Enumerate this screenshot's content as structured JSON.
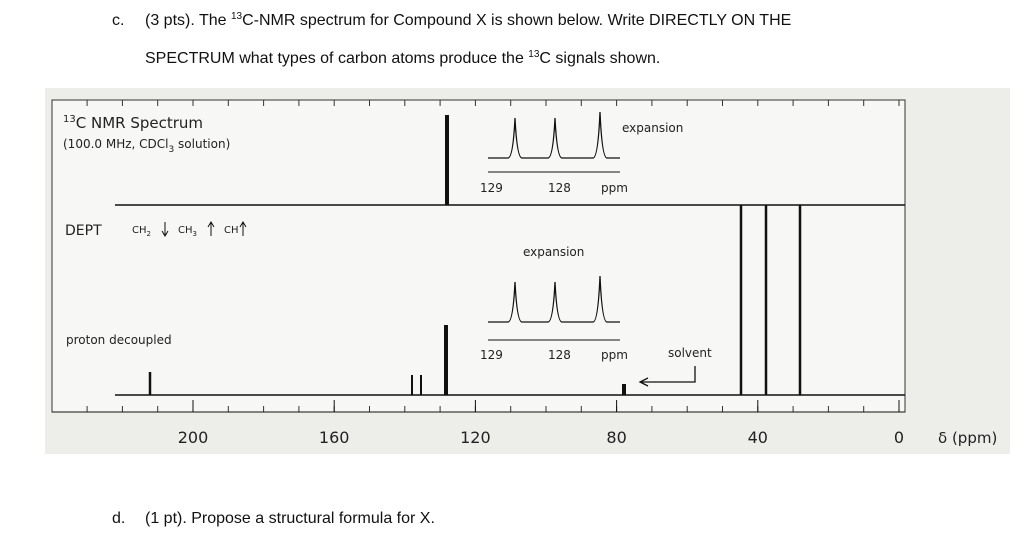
{
  "question_c": {
    "label": "c.",
    "line1": {
      "before": "(3 pts). The ",
      "sup": "13",
      "after": "C-NMR spectrum for Compound X is shown below. Write DIRECTLY ON THE"
    },
    "line2": {
      "before": "SPECTRUM what types of carbon atoms produce the ",
      "sup": "13",
      "after": "C signals shown."
    }
  },
  "spectrum": {
    "title": {
      "sup": "13",
      "text": "C NMR Spectrum"
    },
    "conditions": {
      "before": "(100.0 MHz, CDCl",
      "sub": "3",
      "after": " solution)"
    },
    "dept": {
      "label": "DEPT",
      "ch2": {
        "text": "CH",
        "sub": "2"
      },
      "ch3": {
        "text": "CH",
        "sub": "3"
      },
      "ch": "CH"
    },
    "expansion_top": {
      "label": "expansion",
      "ticks": [
        129,
        128
      ],
      "unit": "ppm"
    },
    "expansion_bottom": {
      "label": "expansion",
      "ticks": [
        129,
        128
      ],
      "unit": "ppm"
    },
    "proton_decoupled": "proton decoupled",
    "solvent": "solvent",
    "x_axis": {
      "ticks": [
        200,
        160,
        120,
        80,
        40,
        0
      ],
      "label": "δ (ppm)"
    }
  },
  "question_d": {
    "label": "d.",
    "text": "(1 pt). Propose a structural formula for X."
  }
}
